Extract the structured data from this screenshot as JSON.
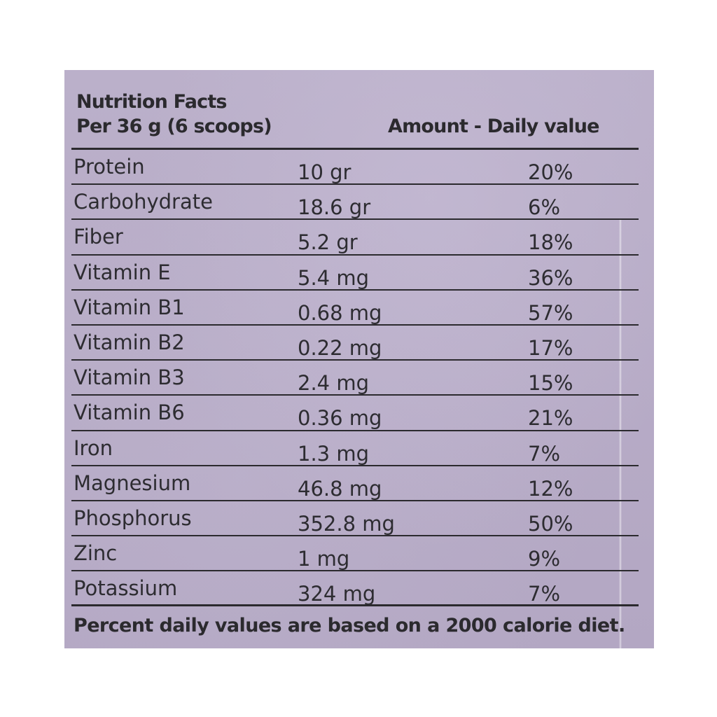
{
  "panel": {
    "title": "Nutrition Facts",
    "serving": "Per 36 g (6 scoops)",
    "column_header": "Amount - Daily value",
    "background_color": "#b4a8c4",
    "text_color": "#2b2a2e"
  },
  "rows": [
    {
      "nutrient": "Protein",
      "amount": "10 gr",
      "daily_value": "20%"
    },
    {
      "nutrient": "Carbohydrate",
      "amount": "18.6 gr",
      "daily_value": "6%"
    },
    {
      "nutrient": "Fiber",
      "amount": "5.2 gr",
      "daily_value": "18%"
    },
    {
      "nutrient": "Vitamin E",
      "amount": "5.4 mg",
      "daily_value": "36%"
    },
    {
      "nutrient": "Vitamin B1",
      "amount": "0.68 mg",
      "daily_value": "57%"
    },
    {
      "nutrient": "Vitamin B2",
      "amount": "0.22 mg",
      "daily_value": "17%"
    },
    {
      "nutrient": "Vitamin B3",
      "amount": "2.4 mg",
      "daily_value": "15%"
    },
    {
      "nutrient": "Vitamin B6",
      "amount": "0.36 mg",
      "daily_value": "21%"
    },
    {
      "nutrient": "Iron",
      "amount": "1.3 mg",
      "daily_value": "7%"
    },
    {
      "nutrient": "Magnesium",
      "amount": "46.8 mg",
      "daily_value": "12%"
    },
    {
      "nutrient": "Phosphorus",
      "amount": "352.8 mg",
      "daily_value": "50%"
    },
    {
      "nutrient": "Zinc",
      "amount": "1 mg",
      "daily_value": "9%"
    },
    {
      "nutrient": "Potassium",
      "amount": "324 mg",
      "daily_value": "7%"
    }
  ],
  "footnote": "Percent daily values are based on a 2000 calorie diet."
}
